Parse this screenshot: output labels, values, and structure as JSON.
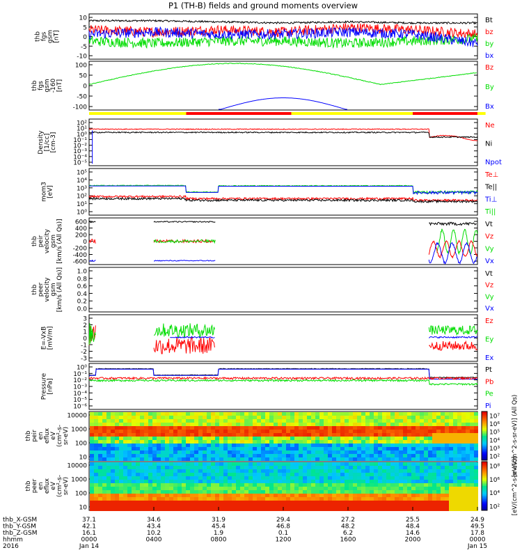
{
  "title": "P1 (TH-B) fields and ground moments overview",
  "colors": {
    "black": "#000000",
    "red": "#ff0000",
    "green": "#00dd00",
    "blue": "#0000ff",
    "yellow": "#ffff00"
  },
  "panels": [
    {
      "ylabel": [
        "thb",
        "fgs",
        "gsm",
        "[nT]"
      ],
      "ticks": [
        "10",
        "5",
        "0",
        "-5",
        "-10"
      ],
      "legend": [
        {
          "t": "Bt",
          "c": "black"
        },
        {
          "t": "bz",
          "c": "red"
        },
        {
          "t": "by",
          "c": "green"
        },
        {
          "t": "bx",
          "c": "blue"
        }
      ]
    },
    {
      "ylabel": [
        "thb",
        "fgs",
        "gsm",
        "-160",
        "[nT]"
      ],
      "ticks": [
        "100",
        "50",
        "0",
        "-50",
        "-100"
      ],
      "legend": [
        {
          "t": "Bz",
          "c": "red"
        },
        {
          "t": "By",
          "c": "green"
        },
        {
          "t": "Bx",
          "c": "blue"
        }
      ]
    },
    {
      "ylabel": [
        "Density",
        "[1/cc]",
        "[cm-3]"
      ],
      "ticks": [
        "10²",
        "10¹",
        "10⁰",
        "10⁻¹",
        "10⁻²",
        "10⁻³",
        "10⁻⁴",
        "10⁻⁵"
      ],
      "legend": [
        {
          "t": "Ne",
          "c": "red"
        },
        {
          "t": "Ni",
          "c": "black"
        },
        {
          "t": "Npot",
          "c": "blue"
        }
      ]
    },
    {
      "ylabel": [
        "mom3",
        "[eV]"
      ],
      "ticks": [
        "10⁵",
        "10⁴",
        "10³",
        "10²",
        "10¹",
        "10⁰"
      ],
      "legend": [
        {
          "t": "Te⊥",
          "c": "red"
        },
        {
          "t": "Te||",
          "c": "black"
        },
        {
          "t": "Ti⊥",
          "c": "blue"
        },
        {
          "t": "Ti||",
          "c": "green"
        }
      ]
    },
    {
      "ylabel": [
        "thb",
        "peir",
        "velocity",
        "gsm",
        "[km/s (All Qs)]"
      ],
      "ticks": [
        "600",
        "400",
        "200",
        "0",
        "-200",
        "-400",
        "-600"
      ],
      "legend": [
        {
          "t": "Vt",
          "c": "black"
        },
        {
          "t": "Vz",
          "c": "red"
        },
        {
          "t": "Vy",
          "c": "green"
        },
        {
          "t": "Vx",
          "c": "blue"
        }
      ]
    },
    {
      "ylabel": [
        "thb",
        "peer",
        "velocity",
        "gsm",
        "[km/s (All Qs)]"
      ],
      "ticks": [
        "1.0",
        "0.8",
        "0.6",
        "0.4",
        "0.2",
        "0.0"
      ],
      "legend": [
        {
          "t": "Vt",
          "c": "black"
        },
        {
          "t": "Vz",
          "c": "red"
        },
        {
          "t": "Vy",
          "c": "green"
        },
        {
          "t": "Vx",
          "c": "blue"
        }
      ]
    },
    {
      "ylabel": [
        "E=-VxB",
        "[mV/m]"
      ],
      "ticks": [
        "3",
        "2",
        "1",
        "0",
        "-1",
        "-2",
        "-3"
      ],
      "legend": [
        {
          "t": "Ez",
          "c": "red"
        },
        {
          "t": "Ey",
          "c": "green"
        },
        {
          "t": "Ex",
          "c": "blue"
        }
      ]
    },
    {
      "ylabel": [
        "Pressure",
        "[nPa]"
      ],
      "ticks": [
        "10⁰",
        "10⁻¹",
        "10⁻²",
        "10⁻³",
        "10⁻⁴",
        "10⁻⁵",
        "10⁻⁶"
      ],
      "legend": [
        {
          "t": "Pt",
          "c": "black"
        },
        {
          "t": "Pb",
          "c": "red"
        },
        {
          "t": "Pe",
          "c": "green"
        },
        {
          "t": "Pi",
          "c": "blue"
        }
      ]
    },
    {
      "ylabel": [
        "thb",
        "peir",
        "en",
        "eflux",
        "eV",
        "(cm²-s-",
        "sr-eV)"
      ],
      "ticks": [
        "10000",
        "1000",
        "100",
        "10"
      ],
      "legend": []
    },
    {
      "ylabel": [
        "thb",
        "peer",
        "en",
        "eflux",
        "eV",
        "(cm²-s-",
        "sr-eV)"
      ],
      "ticks": [
        "10000",
        "1000",
        "100",
        "10"
      ],
      "legend": []
    }
  ],
  "colorbar1": {
    "ticks": [
      "10⁷",
      "10⁶",
      "10⁵",
      "10⁴",
      "10³",
      "10²"
    ],
    "label": "[eV/(cm^2-s-sr-eV)] (All Qs)"
  },
  "colorbar2": {
    "ticks": [
      "10⁸",
      "10⁶",
      "10⁴",
      "10²"
    ],
    "label": "[eV/(cm^2-s-sr-eV)]"
  },
  "xaxis": {
    "rows": [
      {
        "label": "thb_X-GSM",
        "values": [
          "37.1",
          "34.6",
          "31.9",
          "29.4",
          "27.2",
          "25.5",
          "24.9"
        ]
      },
      {
        "label": "thb_Y-GSM",
        "values": [
          "42.1",
          "43.4",
          "45.4",
          "46.8",
          "48.2",
          "48.4",
          "49.5"
        ]
      },
      {
        "label": "thb_Z-GSM",
        "values": [
          "16.1",
          "10.2",
          "1.9",
          "0.1",
          "6.2",
          "14.6",
          "17.8"
        ]
      },
      {
        "label": "hhmm",
        "values": [
          "0000",
          "0400",
          "0800",
          "1200",
          "1600",
          "2000",
          "0000"
        ]
      }
    ],
    "year": "2016",
    "date_start": "Jan 14",
    "date_end": "Jan 15"
  },
  "chart_data": {
    "type": "line",
    "x_hours": [
      0,
      4,
      8,
      12,
      16,
      20,
      24
    ],
    "panels": [
      {
        "name": "B fgs gsm",
        "ylim": [
          -10,
          10
        ],
        "series": [
          {
            "name": "Bt",
            "values": [
              7,
              7,
              6.5,
              6,
              6.5,
              6,
              6
            ]
          },
          {
            "name": "bz",
            "values": [
              3,
              2,
              3,
              2,
              4,
              3,
              1
            ]
          },
          {
            "name": "by",
            "values": [
              -2,
              -3,
              -2,
              -2,
              -3,
              -2,
              -1
            ]
          },
          {
            "name": "bx",
            "values": [
              1,
              2,
              1,
              1,
              2,
              1,
              -3
            ]
          }
        ]
      },
      {
        "name": "B fgs gsm -160",
        "ylim": [
          -110,
          110
        ],
        "series": [
          {
            "name": "By",
            "values": [
              5,
              70,
              100,
              100,
              55,
              5,
              55
            ]
          },
          {
            "name": "Bx",
            "values": [
              null,
              null,
              -110,
              -55,
              -110,
              null,
              null
            ]
          }
        ]
      },
      {
        "name": "Density",
        "scale": "log",
        "ylim": [
          1e-05,
          100
        ],
        "series": [
          {
            "name": "Ne",
            "values": [
              3,
              3,
              3,
              3,
              3,
              3,
              0.1
            ]
          },
          {
            "name": "Ni",
            "values": [
              1,
              1,
              1,
              1,
              1,
              1,
              0.1
            ]
          }
        ]
      },
      {
        "name": "Temperature",
        "scale": "log",
        "ylim": [
          1,
          100000
        ],
        "series": [
          {
            "name": "Ti",
            "values": [
              1500,
              1500,
              1300,
              1300,
              1300,
              1300,
              200
            ]
          },
          {
            "name": "Te",
            "values": [
              100,
              100,
              40,
              100,
              100,
              100,
              50
            ]
          }
        ]
      },
      {
        "name": "Ion velocity",
        "ylim": [
          -600,
          600
        ],
        "series": [
          {
            "name": "Vt",
            "values": [
              null,
              500,
              null,
              null,
              null,
              null,
              450
            ]
          },
          {
            "name": "Vz",
            "values": [
              null,
              0,
              null,
              null,
              null,
              null,
              -100
            ]
          },
          {
            "name": "Vy",
            "values": [
              null,
              0,
              null,
              null,
              null,
              null,
              100
            ]
          },
          {
            "name": "Vx",
            "values": [
              null,
              -500,
              null,
              null,
              null,
              null,
              -250
            ]
          }
        ]
      },
      {
        "name": "E=-VxB",
        "ylim": [
          -3,
          3
        ],
        "series": [
          {
            "name": "Ez",
            "values": [
              null,
              -1,
              null,
              null,
              null,
              null,
              -1
            ]
          },
          {
            "name": "Ey",
            "values": [
              null,
              1,
              null,
              null,
              null,
              null,
              1
            ]
          },
          {
            "name": "Ex",
            "values": [
              null,
              0,
              null,
              null,
              null,
              null,
              0
            ]
          }
        ]
      },
      {
        "name": "Pressure",
        "scale": "log",
        "ylim": [
          1e-06,
          1
        ],
        "series": [
          {
            "name": "Pt",
            "values": [
              0.2,
              0.02,
              0.2,
              0.2,
              0.2,
              0.2,
              0.01
            ]
          },
          {
            "name": "Pb",
            "values": [
              0.01,
              0.01,
              0.01,
              0.01,
              0.01,
              0.01,
              0.005
            ]
          }
        ]
      }
    ]
  }
}
